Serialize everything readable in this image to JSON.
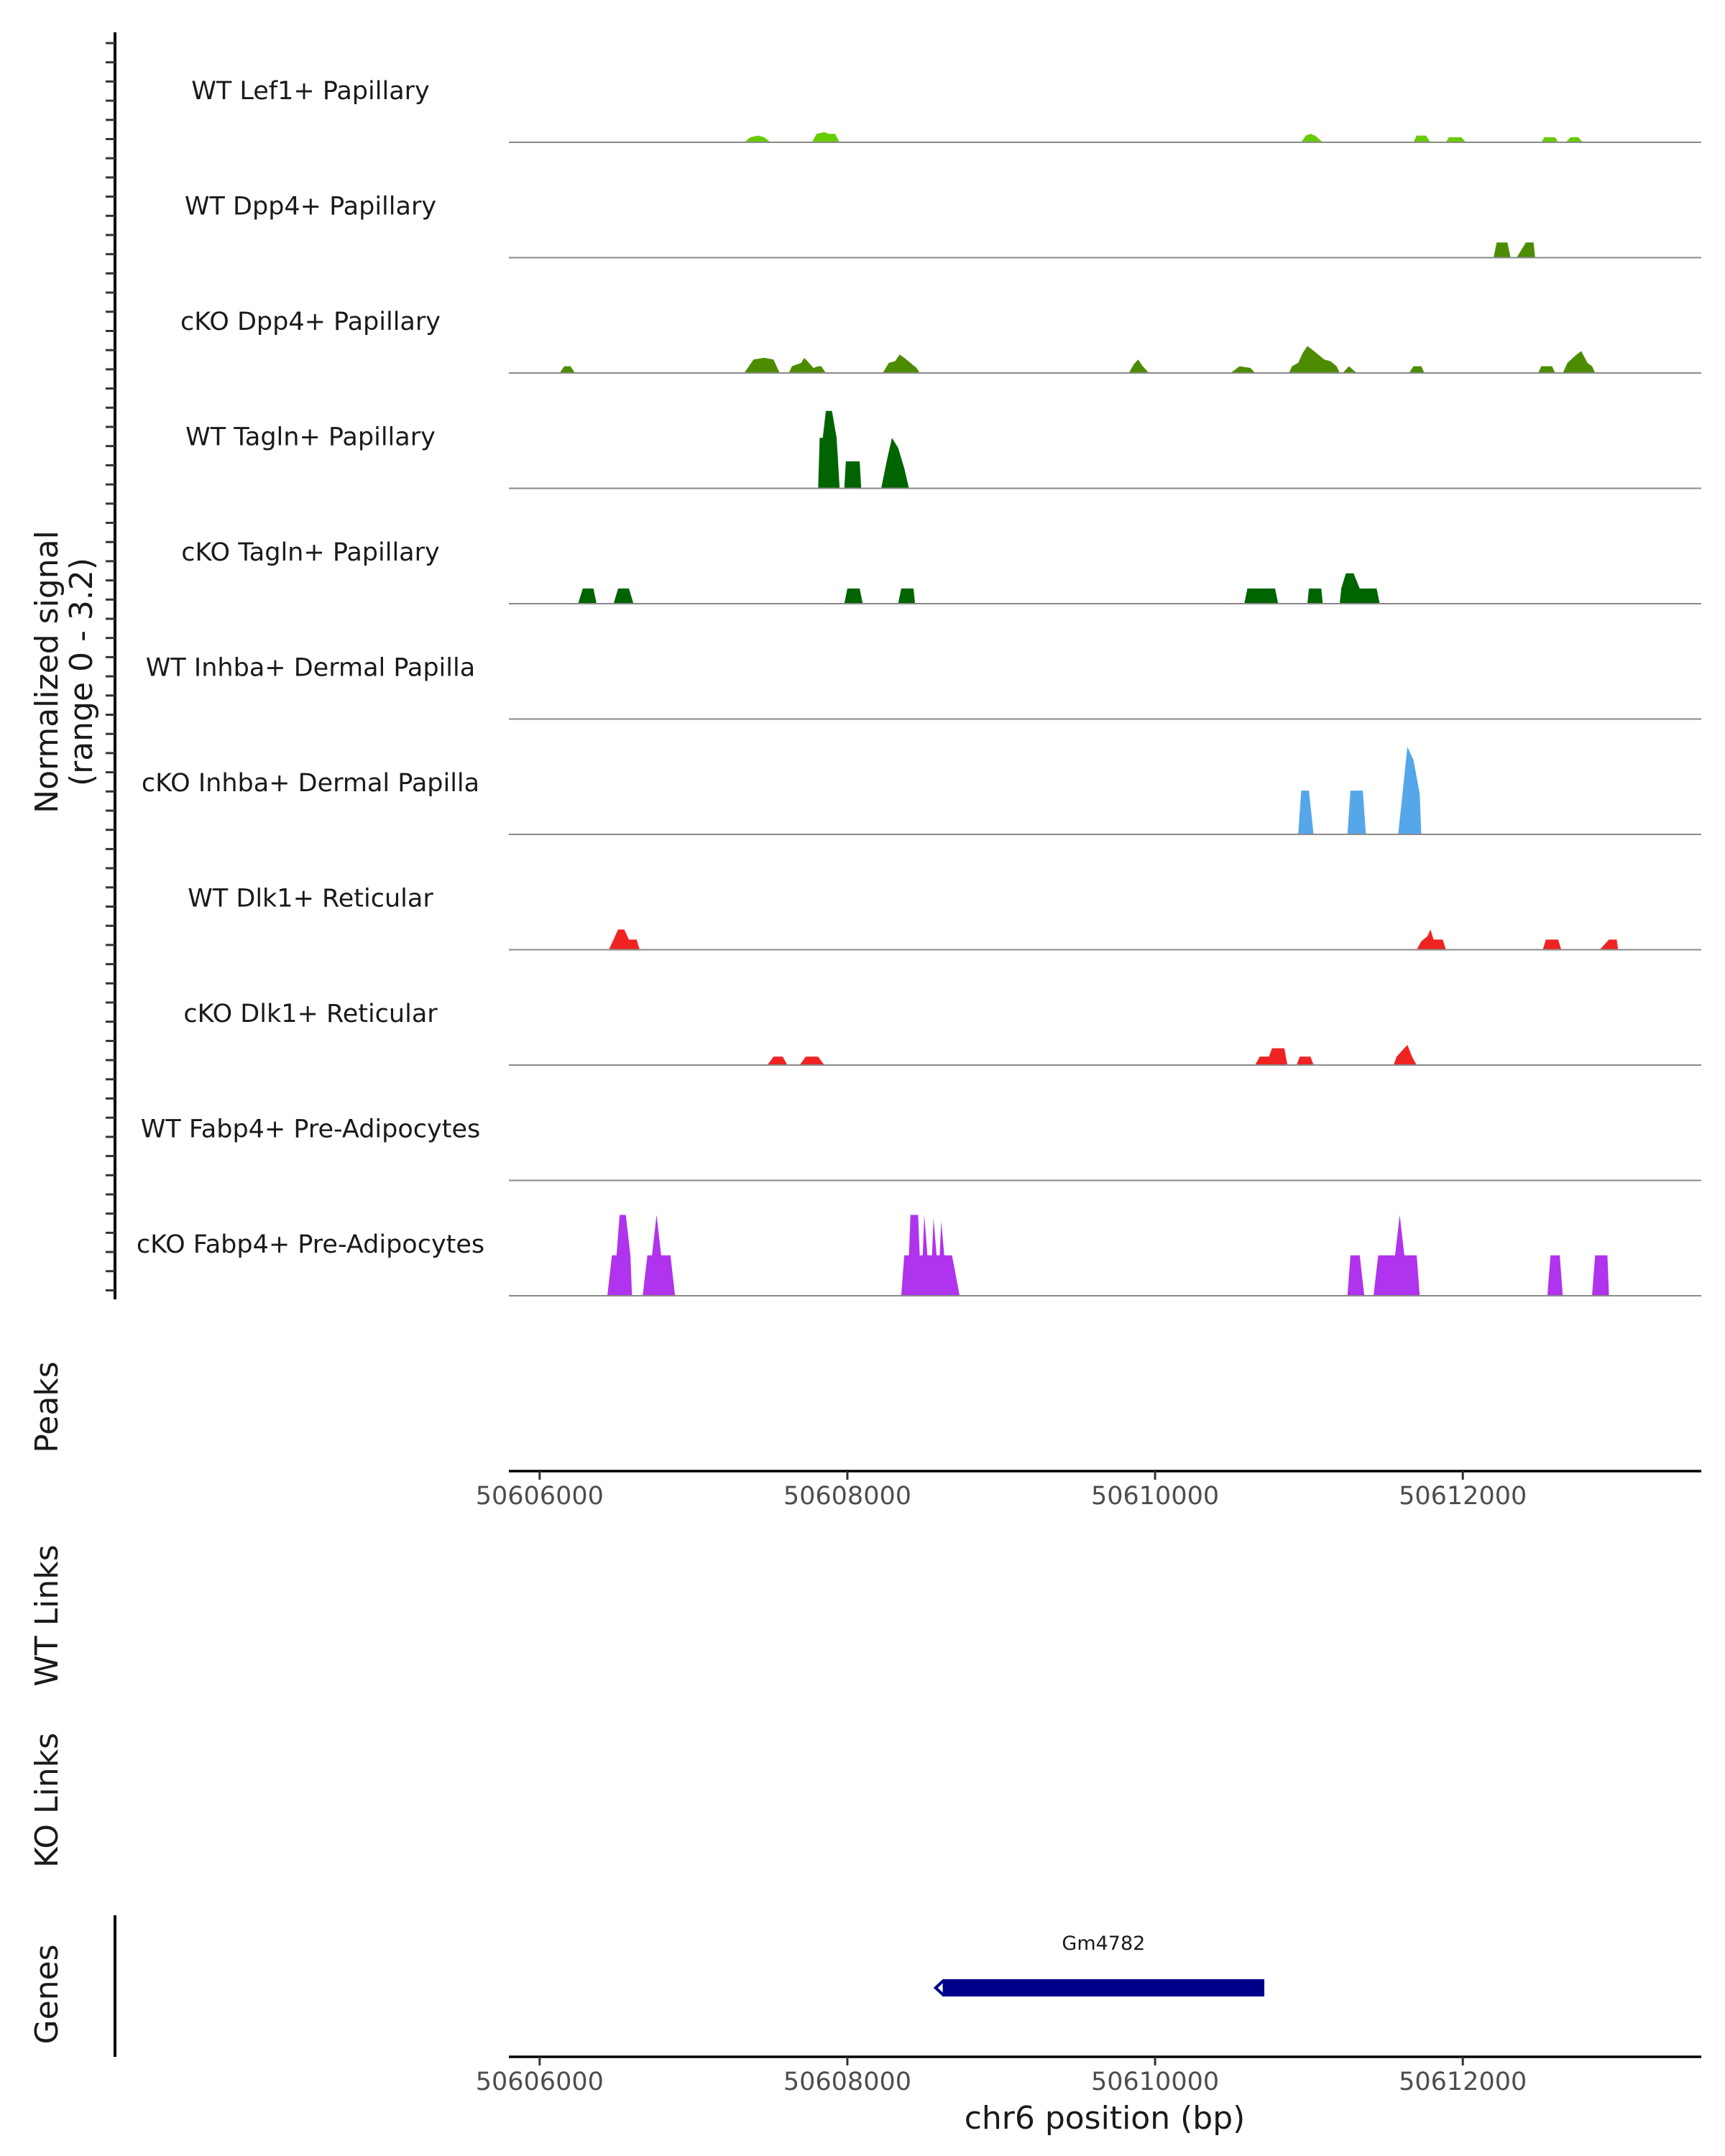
{
  "chart_data": {
    "type": "area",
    "chromosome": "chr6",
    "xlim": [
      50605800,
      50613550
    ],
    "ylim": [
      0,
      3.2
    ],
    "xlabel": "chr6 position (bp)",
    "coverage_ylabel": [
      "Normalized signal",
      "(range 0 - 3.2)"
    ],
    "x_ticks": [
      50606000,
      50608000,
      50610000,
      50612000
    ],
    "x_tick_labels": [
      "50606000",
      "50608000",
      "50610000",
      "50612000"
    ],
    "panel_titles": {
      "peaks": "Peaks",
      "wt_links": "WT Links",
      "ko_links": "KO Links",
      "genes": "Genes"
    },
    "tracks": [
      {
        "name": "WT Lef1+ Papillary",
        "color": "#66cc00",
        "points": [
          [
            50607330,
            0
          ],
          [
            50607370,
            0.15
          ],
          [
            50607420,
            0.2
          ],
          [
            50607460,
            0.15
          ],
          [
            50607500,
            0
          ],
          [
            50607770,
            0
          ],
          [
            50607800,
            0.25
          ],
          [
            50607850,
            0.3
          ],
          [
            50607880,
            0.25
          ],
          [
            50607920,
            0.25
          ],
          [
            50607950,
            0
          ],
          [
            50610950,
            0
          ],
          [
            50610980,
            0.2
          ],
          [
            50611010,
            0.25
          ],
          [
            50611040,
            0.2
          ],
          [
            50611090,
            0
          ],
          [
            50611680,
            0
          ],
          [
            50611700,
            0.2
          ],
          [
            50611760,
            0.2
          ],
          [
            50611790,
            0
          ],
          [
            50611890,
            0
          ],
          [
            50611910,
            0.15
          ],
          [
            50611990,
            0.15
          ],
          [
            50612020,
            0
          ],
          [
            50612510,
            0
          ],
          [
            50612530,
            0.15
          ],
          [
            50612600,
            0.15
          ],
          [
            50612620,
            0
          ],
          [
            50612670,
            0
          ],
          [
            50612700,
            0.15
          ],
          [
            50612750,
            0.15
          ],
          [
            50612780,
            0
          ]
        ]
      },
      {
        "name": "WT Dpp4+ Papillary",
        "color": "#4d8c00",
        "points": [
          [
            50612200,
            0
          ],
          [
            50612220,
            0.45
          ],
          [
            50612290,
            0.45
          ],
          [
            50612310,
            0
          ],
          [
            50612350,
            0
          ],
          [
            50612410,
            0.45
          ],
          [
            50612460,
            0.45
          ],
          [
            50612470,
            0
          ]
        ]
      },
      {
        "name": "cKO Dpp4+ Papillary",
        "color": "#4d8c00",
        "points": [
          [
            50606130,
            0
          ],
          [
            50606160,
            0.2
          ],
          [
            50606200,
            0.2
          ],
          [
            50606230,
            0
          ],
          [
            50607330,
            0
          ],
          [
            50607390,
            0.4
          ],
          [
            50607460,
            0.45
          ],
          [
            50607520,
            0.4
          ],
          [
            50607560,
            0
          ],
          [
            50607620,
            0
          ],
          [
            50607640,
            0.2
          ],
          [
            50607700,
            0.3
          ],
          [
            50607720,
            0.45
          ],
          [
            50607750,
            0.3
          ],
          [
            50607780,
            0.15
          ],
          [
            50607810,
            0.2
          ],
          [
            50607830,
            0.2
          ],
          [
            50607860,
            0
          ],
          [
            50608230,
            0
          ],
          [
            50608270,
            0.3
          ],
          [
            50608310,
            0.35
          ],
          [
            50608340,
            0.55
          ],
          [
            50608370,
            0.45
          ],
          [
            50608410,
            0.3
          ],
          [
            50608450,
            0.15
          ],
          [
            50608470,
            0
          ],
          [
            50609830,
            0
          ],
          [
            50609860,
            0.25
          ],
          [
            50609890,
            0.4
          ],
          [
            50609920,
            0.2
          ],
          [
            50609960,
            0
          ],
          [
            50610490,
            0
          ],
          [
            50610550,
            0.2
          ],
          [
            50610620,
            0.15
          ],
          [
            50610650,
            0
          ],
          [
            50610870,
            0
          ],
          [
            50610890,
            0.2
          ],
          [
            50610930,
            0.3
          ],
          [
            50610960,
            0.6
          ],
          [
            50610990,
            0.8
          ],
          [
            50611020,
            0.7
          ],
          [
            50611060,
            0.55
          ],
          [
            50611100,
            0.4
          ],
          [
            50611140,
            0.35
          ],
          [
            50611180,
            0.2
          ],
          [
            50611200,
            0
          ],
          [
            50611220,
            0
          ],
          [
            50611260,
            0.2
          ],
          [
            50611310,
            0
          ],
          [
            50611650,
            0
          ],
          [
            50611680,
            0.2
          ],
          [
            50611730,
            0.2
          ],
          [
            50611750,
            0
          ],
          [
            50612490,
            0
          ],
          [
            50612510,
            0.2
          ],
          [
            50612580,
            0.2
          ],
          [
            50612600,
            0
          ],
          [
            50612650,
            0
          ],
          [
            50612680,
            0.3
          ],
          [
            50612740,
            0.55
          ],
          [
            50612770,
            0.65
          ],
          [
            50612810,
            0.3
          ],
          [
            50612840,
            0.2
          ],
          [
            50612860,
            0
          ]
        ]
      },
      {
        "name": "WT Tagln+ Papillary",
        "color": "#006400",
        "points": [
          [
            50607810,
            0
          ],
          [
            50607820,
            1.5
          ],
          [
            50607840,
            1.5
          ],
          [
            50607860,
            2.3
          ],
          [
            50607900,
            2.3
          ],
          [
            50607930,
            1.5
          ],
          [
            50607950,
            0
          ],
          [
            50607980,
            0
          ],
          [
            50607990,
            0.8
          ],
          [
            50608080,
            0.8
          ],
          [
            50608090,
            0
          ],
          [
            50608220,
            0
          ],
          [
            50608260,
            0.9
          ],
          [
            50608290,
            1.5
          ],
          [
            50608330,
            1.2
          ],
          [
            50608370,
            0.6
          ],
          [
            50608400,
            0
          ]
        ]
      },
      {
        "name": "cKO Tagln+ Papillary",
        "color": "#006400",
        "points": [
          [
            50606250,
            0
          ],
          [
            50606280,
            0.45
          ],
          [
            50606350,
            0.45
          ],
          [
            50606370,
            0
          ],
          [
            50606480,
            0
          ],
          [
            50606510,
            0.45
          ],
          [
            50606580,
            0.45
          ],
          [
            50606610,
            0
          ],
          [
            50607980,
            0
          ],
          [
            50608000,
            0.45
          ],
          [
            50608080,
            0.45
          ],
          [
            50608100,
            0
          ],
          [
            50608330,
            0
          ],
          [
            50608350,
            0.45
          ],
          [
            50608430,
            0.45
          ],
          [
            50608440,
            0
          ],
          [
            50610580,
            0
          ],
          [
            50610600,
            0.45
          ],
          [
            50610780,
            0.45
          ],
          [
            50610800,
            0
          ],
          [
            50610990,
            0
          ],
          [
            50611000,
            0.45
          ],
          [
            50611080,
            0.45
          ],
          [
            50611090,
            0
          ],
          [
            50611200,
            0
          ],
          [
            50611210,
            0.45
          ],
          [
            50611240,
            0.9
          ],
          [
            50611290,
            0.9
          ],
          [
            50611330,
            0.45
          ],
          [
            50611440,
            0.45
          ],
          [
            50611460,
            0
          ]
        ]
      },
      {
        "name": "WT Inhba+ Dermal Papilla",
        "color": "#56a6ea",
        "points": []
      },
      {
        "name": "cKO Inhba+ Dermal Papilla",
        "color": "#56a6ea",
        "points": [
          [
            50610930,
            0
          ],
          [
            50610950,
            1.3
          ],
          [
            50611000,
            1.3
          ],
          [
            50611030,
            0
          ],
          [
            50611250,
            0
          ],
          [
            50611270,
            1.3
          ],
          [
            50611350,
            1.3
          ],
          [
            50611370,
            0
          ],
          [
            50611580,
            0
          ],
          [
            50611610,
            1.3
          ],
          [
            50611640,
            2.6
          ],
          [
            50611680,
            2.2
          ],
          [
            50611720,
            1.2
          ],
          [
            50611730,
            0
          ]
        ]
      },
      {
        "name": "WT Dlk1+ Reticular",
        "color": "#f02323",
        "points": [
          [
            50606450,
            0
          ],
          [
            50606480,
            0.3
          ],
          [
            50606510,
            0.6
          ],
          [
            50606550,
            0.6
          ],
          [
            50606580,
            0.3
          ],
          [
            50606630,
            0.3
          ],
          [
            50606650,
            0
          ],
          [
            50611700,
            0
          ],
          [
            50611730,
            0.25
          ],
          [
            50611770,
            0.4
          ],
          [
            50611790,
            0.6
          ],
          [
            50611810,
            0.3
          ],
          [
            50611870,
            0.3
          ],
          [
            50611890,
            0
          ],
          [
            50612520,
            0
          ],
          [
            50612540,
            0.3
          ],
          [
            50612620,
            0.3
          ],
          [
            50612640,
            0
          ],
          [
            50612890,
            0
          ],
          [
            50612950,
            0.3
          ],
          [
            50613000,
            0.3
          ],
          [
            50613010,
            0
          ]
        ]
      },
      {
        "name": "cKO Dlk1+ Reticular",
        "color": "#f02323",
        "points": [
          [
            50607480,
            0
          ],
          [
            50607520,
            0.25
          ],
          [
            50607580,
            0.25
          ],
          [
            50607610,
            0
          ],
          [
            50607690,
            0
          ],
          [
            50607730,
            0.25
          ],
          [
            50607810,
            0.25
          ],
          [
            50607850,
            0
          ],
          [
            50610650,
            0
          ],
          [
            50610680,
            0.25
          ],
          [
            50610740,
            0.25
          ],
          [
            50610760,
            0.5
          ],
          [
            50610840,
            0.5
          ],
          [
            50610860,
            0
          ],
          [
            50610920,
            0
          ],
          [
            50610940,
            0.25
          ],
          [
            50611010,
            0.25
          ],
          [
            50611030,
            0
          ],
          [
            50611550,
            0
          ],
          [
            50611570,
            0.25
          ],
          [
            50611610,
            0.45
          ],
          [
            50611640,
            0.6
          ],
          [
            50611670,
            0.25
          ],
          [
            50611700,
            0
          ]
        ]
      },
      {
        "name": "WT Fabp4+ Pre-Adipocytes",
        "color": "#b033ee",
        "points": []
      },
      {
        "name": "cKO Fabp4+ Pre-Adipocytes",
        "color": "#b033ee",
        "points": [
          [
            50606440,
            0
          ],
          [
            50606470,
            1.2
          ],
          [
            50606500,
            1.2
          ],
          [
            50606520,
            2.4
          ],
          [
            50606560,
            2.4
          ],
          [
            50606590,
            1.2
          ],
          [
            50606600,
            0
          ],
          [
            50606670,
            0
          ],
          [
            50606700,
            1.2
          ],
          [
            50606730,
            1.2
          ],
          [
            50606760,
            2.4
          ],
          [
            50606790,
            1.2
          ],
          [
            50606850,
            1.2
          ],
          [
            50606880,
            0
          ],
          [
            50608350,
            0
          ],
          [
            50608370,
            1.2
          ],
          [
            50608400,
            1.2
          ],
          [
            50608410,
            2.4
          ],
          [
            50608460,
            2.4
          ],
          [
            50608470,
            1.2
          ],
          [
            50608490,
            1.2
          ],
          [
            50608500,
            2.4
          ],
          [
            50608520,
            1.2
          ],
          [
            50608550,
            1.2
          ],
          [
            50608560,
            2.3
          ],
          [
            50608580,
            1.2
          ],
          [
            50608600,
            1.2
          ],
          [
            50608610,
            2.2
          ],
          [
            50608630,
            1.2
          ],
          [
            50608680,
            1.2
          ],
          [
            50608730,
            0
          ],
          [
            50611250,
            0
          ],
          [
            50611270,
            1.2
          ],
          [
            50611330,
            1.2
          ],
          [
            50611360,
            0
          ],
          [
            50611420,
            0
          ],
          [
            50611450,
            1.2
          ],
          [
            50611500,
            1.2
          ],
          [
            50611530,
            1.2
          ],
          [
            50611560,
            1.2
          ],
          [
            50611590,
            2.4
          ],
          [
            50611620,
            1.2
          ],
          [
            50611700,
            1.2
          ],
          [
            50611720,
            0
          ],
          [
            50612550,
            0
          ],
          [
            50612570,
            1.2
          ],
          [
            50612630,
            1.2
          ],
          [
            50612650,
            0
          ],
          [
            50612840,
            0
          ],
          [
            50612860,
            1.2
          ],
          [
            50612940,
            1.2
          ],
          [
            50612950,
            0
          ]
        ]
      }
    ],
    "peaks": [],
    "links_wt": [],
    "links_ko": [],
    "genes": [
      {
        "name": "Gm4782",
        "start": 50608620,
        "end": 50610710,
        "strand": "-",
        "color": "#00008b"
      }
    ]
  }
}
